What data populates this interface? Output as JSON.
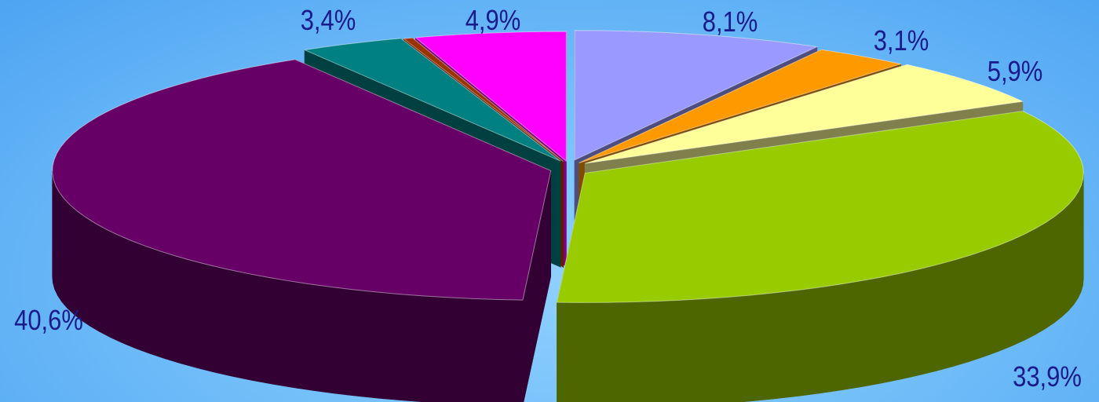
{
  "chart_data": {
    "type": "pie",
    "variant": "exploded-3d",
    "title": "",
    "legend": "none",
    "slices": [
      {
        "label": "8,1%",
        "value": 8.1,
        "color": "#9999ff",
        "side_color": "#4d4d80"
      },
      {
        "label": "3,1%",
        "value": 3.1,
        "color": "#ff9900",
        "side_color": "#804d00"
      },
      {
        "label": "5,9%",
        "value": 5.9,
        "color": "#ffff99",
        "side_color": "#80804d"
      },
      {
        "label": "33,9%",
        "value": 33.9,
        "color": "#99cc00",
        "side_color": "#4d6600"
      },
      {
        "label": "40,6%",
        "value": 40.6,
        "color": "#660066",
        "side_color": "#330033"
      },
      {
        "label": "3,4%",
        "value": 3.4,
        "color": "#008080",
        "side_color": "#004040"
      },
      {
        "label": "",
        "value": 0.3,
        "color": "#993300",
        "side_color": "#661a00"
      },
      {
        "label": "4,9%",
        "value": 4.9,
        "color": "#ff00ff",
        "side_color": "#800080"
      }
    ]
  }
}
